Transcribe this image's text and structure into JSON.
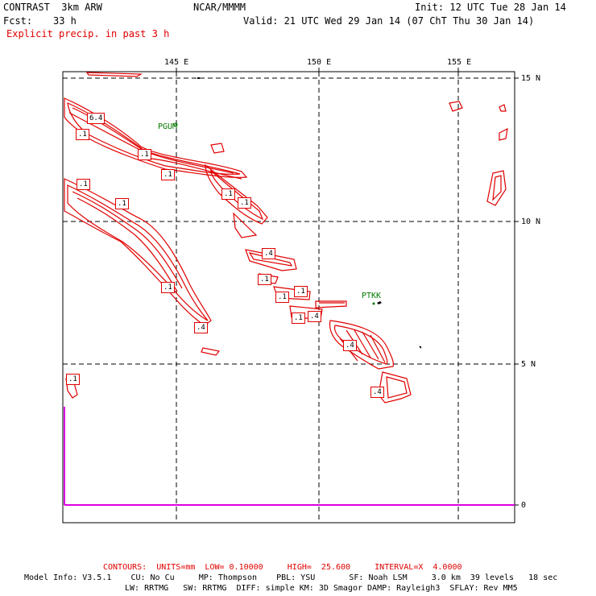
{
  "header": {
    "model": "CONTRAST  3km ARW",
    "org": "NCAR/MMMM",
    "init": "Init: 12 UTC Tue 28 Jan 14",
    "fcst_label": "Fcst:",
    "fcst_value": "33 h",
    "valid": "Valid: 21 UTC Wed 29 Jan 14 (07 ChT Thu 30 Jan 14)",
    "field": "Explicit precip. in past 3 h"
  },
  "axes": {
    "lon_labels": [
      "145 E",
      "150 E",
      "155 E"
    ],
    "lat_labels": [
      "15 N",
      "10 N",
      "5 N"
    ],
    "aux_label": "0"
  },
  "stations": [
    "PGUM",
    "PTKK"
  ],
  "contour_labels": [
    "6.4",
    ".1",
    ".1",
    ".1",
    ".1",
    ".1",
    ".1",
    ".1",
    ".4",
    ".1",
    ".1",
    ".4",
    ".1",
    ".4",
    ".4",
    ".4",
    ".1"
  ],
  "footer": {
    "contours": "CONTOURS:  UNITS=mm  LOW= 0.10000     HIGH=  25.600     INTERVAL=X  4.0000",
    "model_info_1": "Model Info: V3.5.1    CU: No Cu     MP: Thompson    PBL: YSU       SF: Noah LSM     3.0 km  39 levels   18 sec",
    "model_info_2": "LW: RRTMG   SW: RRTMG  DIFF: simple KM: 3D Smagor DAMP: Rayleigh3  SFLAY: Rev MM5"
  },
  "colors": {
    "contour": "#e00000",
    "station": "#007700",
    "magenta": "#e000e0"
  }
}
